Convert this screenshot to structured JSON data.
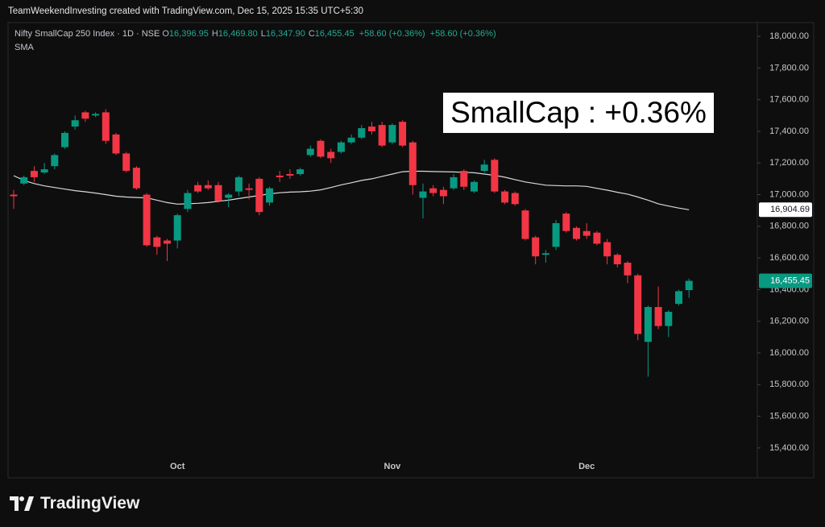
{
  "attribution": "TeamWeekendInvesting created with TradingView.com, Dec 15, 2025 15:35 UTC+5:30",
  "logo_text": "TradingView",
  "chart_data": {
    "type": "candlestick",
    "title": "Nifty SmallCap 250 Index · 1D · NSE",
    "ohlc_legend": [
      {
        "key": "O",
        "value": "16,396.95"
      },
      {
        "key": "H",
        "value": "16,469.80"
      },
      {
        "key": "L",
        "value": "16,347.90"
      },
      {
        "key": "C",
        "value": "16,455.45"
      }
    ],
    "change": "+58.60 (+0.36%)",
    "annotation": "SmallCap : +0.36%",
    "categories": [
      null,
      null,
      null,
      null,
      null,
      null,
      null,
      null,
      null,
      null,
      null,
      null,
      null,
      null,
      null,
      null,
      "Oct",
      null,
      null,
      null,
      null,
      null,
      null,
      null,
      null,
      null,
      null,
      null,
      null,
      null,
      null,
      null,
      null,
      null,
      null,
      null,
      null,
      "Nov",
      null,
      null,
      null,
      null,
      null,
      null,
      null,
      null,
      null,
      null,
      null,
      null,
      null,
      null,
      null,
      null,
      null,
      null,
      "Dec",
      null,
      null,
      null,
      null,
      null,
      null,
      null,
      null,
      null,
      null
    ],
    "open": [
      17000,
      17070,
      17150,
      17140,
      17180,
      17300,
      17430,
      17520,
      17500,
      17520,
      17380,
      17260,
      17170,
      17000,
      16730,
      16710,
      16710,
      16910,
      17060,
      17060,
      17060,
      16980,
      17020,
      17040,
      17100,
      16950,
      17120,
      17130,
      17130,
      17250,
      17340,
      17270,
      17270,
      17330,
      17360,
      17430,
      17440,
      17330,
      17460,
      17330,
      16980,
      17040,
      17030,
      17040,
      17150,
      17020,
      17150,
      17220,
      17020,
      17010,
      16900,
      16730,
      16620,
      16670,
      16880,
      16790,
      16770,
      16760,
      16700,
      16620,
      16570,
      16490,
      16070,
      16290,
      16170,
      16310,
      16396.95
    ],
    "high": [
      17030,
      17120,
      17180,
      17200,
      17260,
      17400,
      17500,
      17530,
      17520,
      17540,
      17390,
      17270,
      17180,
      17010,
      16740,
      16720,
      16880,
      17030,
      17080,
      17090,
      17080,
      17010,
      17120,
      17070,
      17110,
      17050,
      17150,
      17160,
      17170,
      17310,
      17350,
      17290,
      17340,
      17380,
      17440,
      17460,
      17460,
      17450,
      17470,
      17340,
      17070,
      17060,
      17050,
      17130,
      17160,
      17090,
      17220,
      17230,
      17030,
      17020,
      16910,
      16740,
      16650,
      16840,
      16890,
      16800,
      16820,
      16770,
      16720,
      16630,
      16580,
      16500,
      16300,
      16420,
      16270,
      16400,
      16469.8
    ],
    "low": [
      16910,
      17060,
      17080,
      17130,
      17160,
      17290,
      17410,
      17460,
      17490,
      17320,
      17250,
      17140,
      17030,
      16670,
      16620,
      16580,
      16660,
      16890,
      17010,
      17030,
      16950,
      16920,
      16990,
      16970,
      16870,
      16930,
      17080,
      17100,
      17120,
      17240,
      17230,
      17200,
      17260,
      17320,
      17350,
      17380,
      17300,
      17320,
      17300,
      17000,
      16850,
      16990,
      16940,
      17030,
      17030,
      17010,
      17140,
      17010,
      16940,
      16930,
      16710,
      16560,
      16570,
      16650,
      16760,
      16710,
      16720,
      16680,
      16560,
      16540,
      16440,
      16080,
      15850,
      16150,
      16100,
      16300,
      16347.9
    ],
    "close": [
      16990,
      17110,
      17110,
      17160,
      17250,
      17390,
      17470,
      17480,
      17510,
      17340,
      17260,
      17150,
      17040,
      16680,
      16670,
      16690,
      16870,
      17010,
      17020,
      17040,
      16960,
      17000,
      17110,
      17030,
      16890,
      17040,
      17110,
      17120,
      17160,
      17290,
      17240,
      17230,
      17330,
      17360,
      17420,
      17400,
      17310,
      17440,
      17310,
      17060,
      17020,
      17010,
      16990,
      17110,
      17050,
      17080,
      17190,
      17020,
      16950,
      16940,
      16720,
      16610,
      16630,
      16820,
      16770,
      16720,
      16740,
      16690,
      16610,
      16560,
      16490,
      16120,
      16290,
      16170,
      16260,
      16390,
      16455.45
    ],
    "up_color": "#089981",
    "down_color": "#f23645",
    "sma": {
      "name": "SMA",
      "color": "#d9d9d9",
      "values": [
        17120,
        17090,
        17070,
        17055,
        17045,
        17035,
        17025,
        17018,
        17010,
        17000,
        16990,
        16985,
        16982,
        16980,
        16965,
        16950,
        16940,
        16942,
        16945,
        16950,
        16958,
        16965,
        16975,
        16985,
        16995,
        17005,
        17012,
        17016,
        17018,
        17022,
        17030,
        17045,
        17062,
        17075,
        17090,
        17100,
        17115,
        17130,
        17145,
        17148,
        17148,
        17146,
        17145,
        17143,
        17141,
        17138,
        17130,
        17122,
        17110,
        17095,
        17080,
        17070,
        17060,
        17057,
        17055,
        17055,
        17052,
        17040,
        17028,
        17015,
        17003,
        16985,
        16965,
        16942,
        16928,
        16915,
        16904.69
      ]
    },
    "last_labels": [
      {
        "value": 16904.69,
        "label": "16,904.69",
        "bg": "#ffffff",
        "fg": "#131722"
      },
      {
        "value": 16455.45,
        "label": "16,455.45",
        "bg": "#089981",
        "fg": "#ffffff"
      }
    ],
    "ylim": [
      15216,
      18087
    ],
    "yticks": [
      {
        "value": 15400,
        "label": "15,400.00"
      },
      {
        "value": 15600,
        "label": "15,600.00"
      },
      {
        "value": 15800,
        "label": "15,800.00"
      },
      {
        "value": 16000,
        "label": "16,000.00"
      },
      {
        "value": 16200,
        "label": "16,200.00"
      },
      {
        "value": 16400,
        "label": "16,400.00"
      },
      {
        "value": 16600,
        "label": "16,600.00"
      },
      {
        "value": 16800,
        "label": "16,800.00"
      },
      {
        "value": 17000,
        "label": "17,000.00"
      },
      {
        "value": 17200,
        "label": "17,200.00"
      },
      {
        "value": 17400,
        "label": "17,400.00"
      },
      {
        "value": 17600,
        "label": "17,600.00"
      },
      {
        "value": 17800,
        "label": "17,800.00"
      },
      {
        "value": 18000,
        "label": "18,000.00"
      }
    ],
    "grid": false
  }
}
